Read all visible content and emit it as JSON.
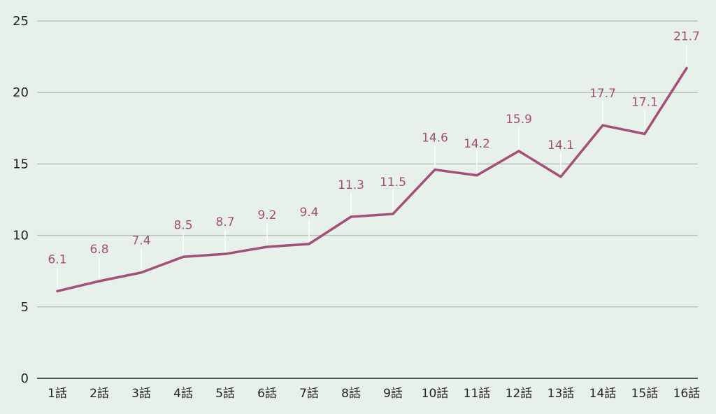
{
  "chart_data": {
    "type": "line",
    "categories": [
      "1話",
      "2話",
      "3話",
      "4話",
      "5話",
      "6話",
      "7話",
      "8話",
      "9話",
      "10話",
      "11話",
      "12話",
      "13話",
      "14話",
      "15話",
      "16話"
    ],
    "series": [
      {
        "values": [
          6.1,
          6.8,
          7.4,
          8.5,
          8.7,
          9.2,
          9.4,
          11.3,
          11.5,
          14.6,
          14.2,
          15.9,
          14.1,
          17.7,
          17.1,
          21.7
        ],
        "labels": [
          "6.1",
          "6.8",
          "7.4",
          "8.5",
          "8.7",
          "9.2",
          "9.4",
          "11.3",
          "11.5",
          "14.6",
          "14.2",
          "15.9",
          "14.1",
          "17.7",
          "17.1",
          "21.7"
        ],
        "color": "#a34f78"
      }
    ],
    "yticks": [
      "0",
      "5",
      "10",
      "15",
      "20",
      "25"
    ],
    "ylim": [
      0,
      25
    ],
    "grid": true,
    "legend": "none",
    "background": "#e8f1e9"
  }
}
